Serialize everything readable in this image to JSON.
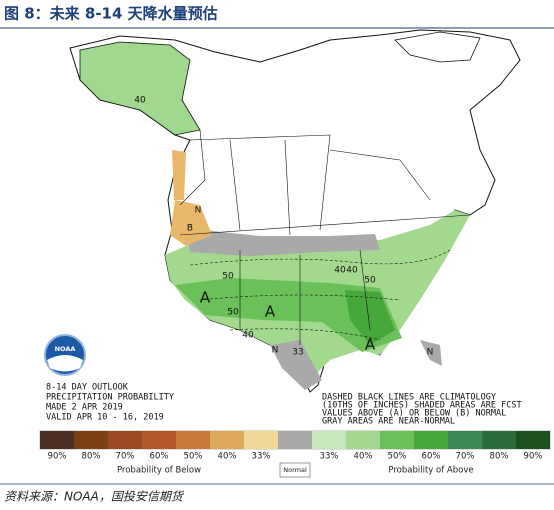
{
  "header": {
    "title": "图 8：未来 8-14 天降水量预估"
  },
  "map": {
    "logo": "NOAA",
    "labels": [
      "40",
      "B",
      "N",
      "A",
      "40",
      "50",
      "50",
      "40",
      "A",
      "50",
      "N",
      "33",
      "A",
      "N",
      "40"
    ],
    "outlook_lines": [
      "8-14 DAY OUTLOOK",
      "PRECIPITATION PROBABILITY",
      "MADE  2 APR 2019",
      "VALID  APR 10 - 16, 2019"
    ],
    "notes_lines": [
      "DASHED BLACK LINES ARE CLIMATOLOGY",
      "(10THS OF INCHES) SHADED AREAS ARE FCST",
      "VALUES ABOVE (A) OR BELOW (B) NORMAL",
      "GRAY AREAS ARE NEAR-NORMAL"
    ]
  },
  "legend": {
    "items": [
      {
        "label": "90%",
        "color": "#4b2e22"
      },
      {
        "label": "80%",
        "color": "#7a3f12"
      },
      {
        "label": "70%",
        "color": "#9c4a25"
      },
      {
        "label": "60%",
        "color": "#b5582c"
      },
      {
        "label": "50%",
        "color": "#c8783a"
      },
      {
        "label": "40%",
        "color": "#dea85a"
      },
      {
        "label": "33%",
        "color": "#f0d79a"
      },
      {
        "label": null,
        "color": "#a9a9a9"
      },
      {
        "label": "33%",
        "color": "#c6e8bb"
      },
      {
        "label": "40%",
        "color": "#a3d98f"
      },
      {
        "label": "50%",
        "color": "#6cc05a"
      },
      {
        "label": "60%",
        "color": "#46a83a"
      },
      {
        "label": "70%",
        "color": "#3d8a55"
      },
      {
        "label": "80%",
        "color": "#2b6b3c"
      },
      {
        "label": "90%",
        "color": "#1d5220"
      }
    ],
    "below_title": "Probability of Below",
    "normal_title": "Normal",
    "above_title": "Probability of Above"
  },
  "source": "资料来源：NOAA，国投安信期货"
}
